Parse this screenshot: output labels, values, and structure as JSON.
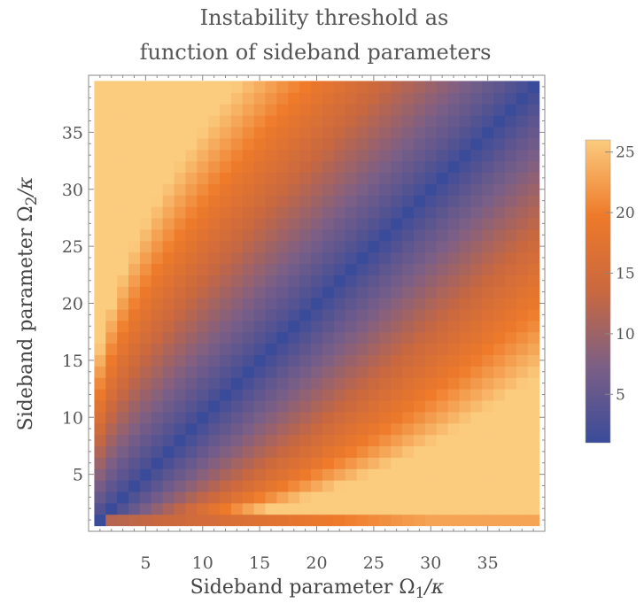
{
  "chart_data": {
    "type": "heatmap",
    "title_lines": [
      "Instability threshold as",
      "function of sideband parameters"
    ],
    "xlabel": "Sideband parameter Ω",
    "xlabel_sub": "1",
    "xlabel_tail": "/κ",
    "ylabel": "Sideband parameter Ω",
    "ylabel_sub": "2",
    "ylabel_tail": "/κ",
    "grid": false,
    "legend": "colorbar-right",
    "x_range": [
      1,
      39
    ],
    "y_range": [
      1,
      39
    ],
    "xlim": [
      0,
      40
    ],
    "ylim": [
      0,
      40
    ],
    "x_ticks": [
      5,
      10,
      15,
      20,
      25,
      30,
      35
    ],
    "y_ticks": [
      5,
      10,
      15,
      20,
      25,
      30,
      35
    ],
    "colorbar": {
      "min": 1,
      "max": 26,
      "ticks": [
        5,
        10,
        15,
        20,
        25
      ],
      "colors": [
        "#3a4b9a",
        "#7b5f86",
        "#c9683f",
        "#ee7a2a",
        "#fbcb7e"
      ]
    },
    "value_model": "approximate: diagonal cells ~1 (low threshold); values rise with distance from the diagonal, peaking near 25 for small Ω2 and large Ω1"
  }
}
